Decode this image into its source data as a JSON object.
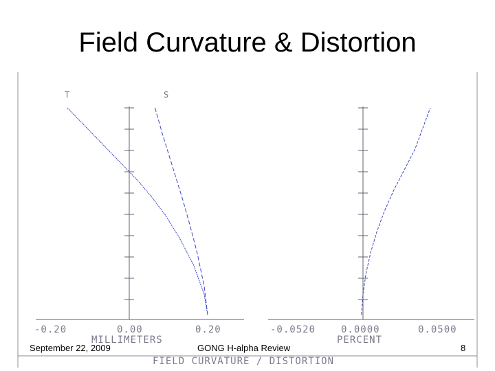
{
  "slide": {
    "title": "Field Curvature & Distortion",
    "footer_date": "September 22, 2009",
    "footer_center": "GONG H-alpha Review",
    "page_number": "8"
  },
  "colors": {
    "curve": "#3a45c8",
    "axis": "#606070",
    "frame_border": "#c8c8c8",
    "text": "#7a7a8c"
  },
  "chart_data": [
    {
      "type": "line",
      "title": "",
      "xlabel": "MILLIMETERS",
      "ylabel": "",
      "xlim": [
        -0.2,
        0.2
      ],
      "ylim": [
        0,
        1
      ],
      "xticks": [
        "-0.20",
        "0.00",
        "0.20"
      ],
      "grid": false,
      "series": [
        {
          "name": "T",
          "x": [
            -0.2,
            -0.16,
            -0.12,
            -0.08,
            -0.04,
            0.0,
            0.04,
            0.08,
            0.12,
            0.16,
            0.19,
            0.2
          ],
          "y": [
            1.0,
            0.93,
            0.86,
            0.79,
            0.72,
            0.65,
            0.57,
            0.48,
            0.37,
            0.24,
            0.1,
            0.0
          ]
        },
        {
          "name": "S",
          "x": [
            0.05,
            0.07,
            0.09,
            0.11,
            0.13,
            0.15,
            0.17,
            0.19,
            0.2
          ],
          "y": [
            1.0,
            0.88,
            0.77,
            0.66,
            0.55,
            0.43,
            0.3,
            0.14,
            0.0
          ]
        }
      ]
    },
    {
      "type": "line",
      "title": "",
      "xlabel": "PERCENT",
      "ylabel": "",
      "xlim": [
        -0.052,
        0.05
      ],
      "ylim": [
        0,
        1
      ],
      "xticks": [
        "-0.0520",
        "0.0000",
        "0.0500"
      ],
      "grid": false,
      "series": [
        {
          "x": [
            0.0,
            0.001,
            0.003,
            0.006,
            0.01,
            0.015,
            0.021,
            0.028,
            0.035,
            0.04,
            0.045
          ],
          "y": [
            0.0,
            0.1,
            0.2,
            0.3,
            0.4,
            0.5,
            0.6,
            0.7,
            0.8,
            0.9,
            1.0
          ]
        }
      ]
    }
  ],
  "caption": "FIELD CURVATURE / DISTORTION"
}
